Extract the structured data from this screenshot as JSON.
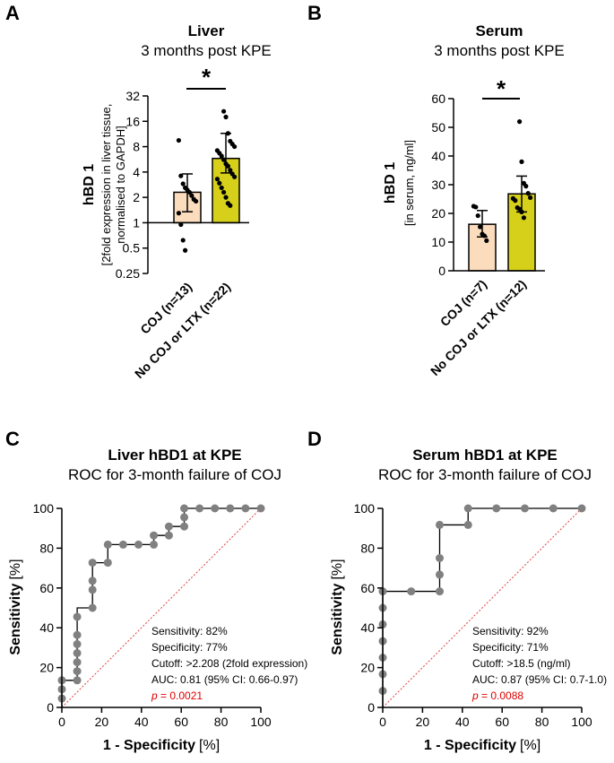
{
  "colors": {
    "coj_bar": "#fbdcbd",
    "nocoj_bar": "#d6d01b",
    "roc_point": "#808080",
    "diagonal": "#e04040",
    "pvalue": "#e00000"
  },
  "chart_data": [
    {
      "panel": "A",
      "type": "bar",
      "title": "Liver",
      "subtitle": "3 months post KPE",
      "ylabel": "hBD 1",
      "ylabel_sub": [
        "[2fold expression in liver tissue,",
        "normalised to GAPDH]"
      ],
      "yscale": "log2",
      "ylim": [
        0.25,
        32
      ],
      "yticks": [
        0.25,
        0.5,
        1,
        2,
        4,
        8,
        16,
        32
      ],
      "ytick_labels": [
        "0.25",
        "0.5",
        "1",
        "2",
        "4",
        "8",
        "16",
        "32"
      ],
      "categories": [
        "COJ (n=13)",
        "No COJ or LTX (n=22)"
      ],
      "bar_base": 1,
      "values": [
        2.3,
        5.8
      ],
      "error": [
        [
          1.35,
          3.8
        ],
        [
          3.9,
          11.5
        ]
      ],
      "points": [
        [
          9.5,
          3.6,
          2.9,
          2.6,
          2.45,
          2.3,
          2.1,
          1.9,
          1.8,
          1.3,
          0.95,
          0.62,
          0.47
        ],
        [
          21,
          18,
          11.5,
          9.3,
          8.6,
          8.0,
          7.2,
          6.7,
          6.2,
          5.6,
          5.0,
          4.7,
          4.2,
          3.8,
          3.5,
          3.3,
          2.95,
          2.6,
          2.3,
          2.0,
          1.7,
          1.6
        ]
      ],
      "significance": "*"
    },
    {
      "panel": "B",
      "type": "bar",
      "title": "Serum",
      "subtitle": "3 months post KPE",
      "ylabel": "hBD 1",
      "ylabel_sub": [
        "[in serum, ng/ml]"
      ],
      "ylim": [
        0,
        60
      ],
      "yticks": [
        0,
        10,
        20,
        30,
        40,
        50,
        60
      ],
      "ytick_labels": [
        "0",
        "10",
        "20",
        "30",
        "40",
        "50",
        "60"
      ],
      "categories": [
        "COJ (n=7)",
        "No COJ or LTX (n=12)"
      ],
      "values": [
        16.2,
        26.8
      ],
      "error": [
        [
          11.8,
          21
        ],
        [
          20.5,
          33
        ]
      ],
      "points": [
        [
          22.5,
          22.2,
          19.2,
          15.3,
          12.8,
          12.2,
          10.5
        ],
        [
          52,
          38,
          30.5,
          29.5,
          27,
          25.5,
          25.2,
          24.5,
          22,
          21.5,
          20.5,
          18.5
        ]
      ],
      "significance": "*"
    },
    {
      "panel": "C",
      "type": "line",
      "title": "Liver hBD1 at KPE",
      "subtitle": "ROC for 3-month failure of COJ",
      "xlabel": "1 - Specificity",
      "xlabel_unit": "[%]",
      "ylabel": "Sensitivity",
      "ylabel_unit": "[%]",
      "xlim": [
        0,
        100
      ],
      "ylim": [
        0,
        100
      ],
      "xticks": [
        0,
        20,
        40,
        60,
        80,
        100
      ],
      "yticks": [
        0,
        20,
        40,
        60,
        80,
        100
      ],
      "x": [
        0,
        0,
        0,
        7.7,
        7.7,
        7.7,
        7.7,
        7.7,
        7.7,
        7.7,
        15.4,
        15.4,
        15.4,
        15.4,
        23.1,
        23.1,
        30.8,
        38.5,
        46.2,
        46.2,
        53.8,
        53.8,
        61.5,
        61.5,
        61.5,
        69.2,
        76.9,
        84.6,
        92.3,
        100
      ],
      "y": [
        4.5,
        9.1,
        13.6,
        13.6,
        18.2,
        22.7,
        27.3,
        31.8,
        36.4,
        45.5,
        50,
        59.1,
        63.6,
        72.7,
        72.7,
        81.8,
        81.8,
        81.8,
        81.8,
        86.4,
        86.4,
        90.9,
        90.9,
        95.5,
        100,
        100,
        100,
        100,
        100,
        100
      ],
      "step": [
        [
          0,
          0
        ],
        [
          0,
          13.6
        ],
        [
          7.7,
          13.6
        ],
        [
          7.7,
          50
        ],
        [
          15.4,
          50
        ],
        [
          15.4,
          72.7
        ],
        [
          23.1,
          72.7
        ],
        [
          23.1,
          81.8
        ],
        [
          46.2,
          81.8
        ],
        [
          46.2,
          86.4
        ],
        [
          53.8,
          86.4
        ],
        [
          53.8,
          90.9
        ],
        [
          61.5,
          90.9
        ],
        [
          61.5,
          100
        ],
        [
          100,
          100
        ]
      ],
      "stats": {
        "sensitivity": "Sensitivity: 82%",
        "specificity": "Specificity: 77%",
        "cutoff": "Cutoff: >2.208 (2fold expression)",
        "auc": "AUC: 0.81 (95% CI: 0.66-0.97)",
        "p_label": "p",
        "p_value": " = 0.0021"
      }
    },
    {
      "panel": "D",
      "type": "line",
      "title": "Serum hBD1 at KPE",
      "subtitle": "ROC for 3-month failure of COJ",
      "xlabel": "1 - Specificity",
      "xlabel_unit": "[%]",
      "ylabel": "Sensitivity",
      "ylabel_unit": "[%]",
      "xlim": [
        0,
        100
      ],
      "ylim": [
        0,
        100
      ],
      "xticks": [
        0,
        20,
        40,
        60,
        80,
        100
      ],
      "yticks": [
        0,
        20,
        40,
        60,
        80,
        100
      ],
      "x": [
        0,
        0,
        0,
        0,
        0,
        0,
        0,
        14.3,
        28.6,
        28.6,
        28.6,
        28.6,
        42.9,
        42.9,
        57.1,
        71.4,
        85.7,
        100
      ],
      "y": [
        8.3,
        16.7,
        25,
        33.3,
        41.7,
        50,
        58.3,
        58.3,
        58.3,
        66.7,
        75,
        91.7,
        91.7,
        100,
        100,
        100,
        100,
        100
      ],
      "step": [
        [
          0,
          0
        ],
        [
          0,
          58.3
        ],
        [
          28.6,
          58.3
        ],
        [
          28.6,
          91.7
        ],
        [
          42.9,
          91.7
        ],
        [
          42.9,
          100
        ],
        [
          100,
          100
        ]
      ],
      "stats": {
        "sensitivity": "Sensitivity: 92%",
        "specificity": "Specificity: 71%",
        "cutoff": "Cutoff: >18.5 (ng/ml)",
        "auc": "AUC: 0.87 (95% CI: 0.7-1.0)",
        "p_label": "p",
        "p_value": " = 0.0088"
      }
    }
  ]
}
